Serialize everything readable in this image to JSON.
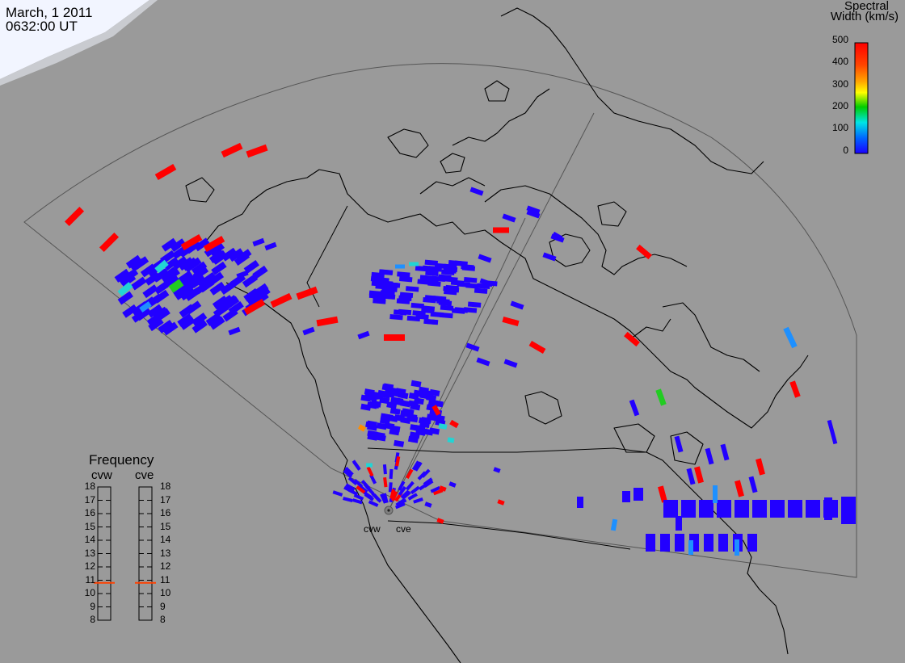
{
  "timestamp": {
    "date": "March, 1 2011",
    "time": "0632:00 UT"
  },
  "colorbar": {
    "title_line1": "Spectral",
    "title_line2": "Width (km/s)",
    "ticks": [
      "500",
      "400",
      "300",
      "200",
      "100",
      "0"
    ],
    "colors": [
      "#ff0000",
      "#ffa500",
      "#ffff00",
      "#00cc00",
      "#00e5e5",
      "#0066ff",
      "#1a00ff"
    ]
  },
  "frequency_panel": {
    "title": "Frequency",
    "radars": [
      {
        "name": "cvw",
        "freq_mhz": 10.8
      },
      {
        "name": "cve",
        "freq_mhz": 10.8
      }
    ],
    "levels": [
      "18",
      "17",
      "16",
      "15",
      "14",
      "13",
      "12",
      "11",
      "10",
      "9",
      "8"
    ],
    "marker_color": "#ff4000"
  },
  "radar_sites": [
    {
      "name": "cvw"
    },
    {
      "name": "cve"
    }
  ],
  "map_colors": {
    "background": "#9a9a9a",
    "coastline": "#000000",
    "fov": "#555555",
    "daylight": "#f0f4ff"
  },
  "scatter_colors": {
    "low": "#2200ff",
    "cyan": "#22d4d4",
    "lightblue": "#1e90ff",
    "green": "#22cc22",
    "orange": "#ff8c00",
    "high": "#ff0000"
  }
}
